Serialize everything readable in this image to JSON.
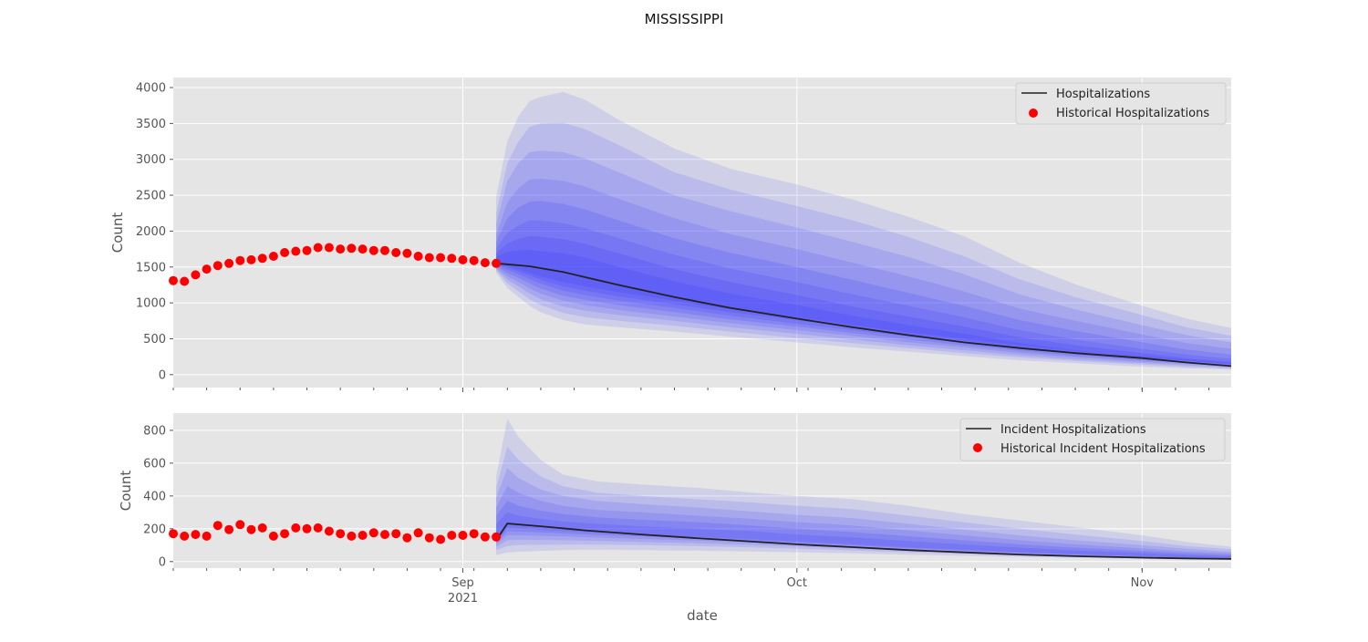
{
  "figure": {
    "title": "MISSISSIPPI"
  },
  "chart_data": [
    {
      "type": "line",
      "ylabel": "Count",
      "xlabel": "",
      "ylim": [
        -180,
        4140
      ],
      "yticks": [
        0,
        500,
        1000,
        1500,
        2000,
        2500,
        3000,
        3500,
        4000
      ],
      "xlim": [
        "2021-08-06",
        "2021-11-09"
      ],
      "xticks": [
        {
          "date": "2021-09-01",
          "label": "Sep",
          "sublabel": "2021"
        },
        {
          "date": "2021-10-01",
          "label": "Oct",
          "sublabel": ""
        },
        {
          "date": "2021-11-01",
          "label": "Nov",
          "sublabel": ""
        }
      ],
      "grid": true,
      "legend_position": "top-right",
      "legend": [
        "Hospitalizations",
        "Historical Hospitalizations"
      ],
      "colors": {
        "historical": "#ff0000",
        "median": "#222222",
        "band": "#3333ff",
        "background": "#e5e5e5"
      },
      "historical": {
        "name": "Historical Hospitalizations",
        "x": [
          "2021-08-06",
          "2021-08-07",
          "2021-08-08",
          "2021-08-09",
          "2021-08-10",
          "2021-08-11",
          "2021-08-12",
          "2021-08-13",
          "2021-08-14",
          "2021-08-15",
          "2021-08-16",
          "2021-08-17",
          "2021-08-18",
          "2021-08-19",
          "2021-08-20",
          "2021-08-21",
          "2021-08-22",
          "2021-08-23",
          "2021-08-24",
          "2021-08-25",
          "2021-08-26",
          "2021-08-27",
          "2021-08-28",
          "2021-08-29",
          "2021-08-30",
          "2021-08-31",
          "2021-09-01",
          "2021-09-02",
          "2021-09-03",
          "2021-09-04"
        ],
        "y": [
          1310,
          1300,
          1390,
          1470,
          1520,
          1550,
          1590,
          1600,
          1620,
          1650,
          1700,
          1720,
          1730,
          1770,
          1770,
          1750,
          1760,
          1750,
          1730,
          1730,
          1700,
          1690,
          1650,
          1630,
          1630,
          1620,
          1600,
          1590,
          1560,
          1550
        ]
      },
      "median": {
        "name": "Hospitalizations",
        "x": [
          "2021-09-04",
          "2021-09-07",
          "2021-09-10",
          "2021-09-15",
          "2021-09-20",
          "2021-09-25",
          "2021-10-01",
          "2021-10-06",
          "2021-10-11",
          "2021-10-16",
          "2021-10-21",
          "2021-10-26",
          "2021-11-01",
          "2021-11-05",
          "2021-11-09"
        ],
        "y": [
          1550,
          1510,
          1430,
          1250,
          1080,
          930,
          780,
          660,
          550,
          450,
          370,
          300,
          230,
          170,
          120
        ]
      },
      "bands": {
        "x": [
          "2021-09-04",
          "2021-09-05",
          "2021-09-06",
          "2021-09-07",
          "2021-09-08",
          "2021-09-10",
          "2021-09-12",
          "2021-09-15",
          "2021-09-20",
          "2021-09-25",
          "2021-10-01",
          "2021-10-06",
          "2021-10-11",
          "2021-10-16",
          "2021-10-21",
          "2021-10-26",
          "2021-11-01",
          "2021-11-05",
          "2021-11-09"
        ],
        "upper": [
          [
            2480,
            3250,
            3600,
            3810,
            3870,
            3940,
            3830,
            3550,
            3150,
            2870,
            2650,
            2440,
            2200,
            1930,
            1560,
            1260,
            960,
            780,
            650
          ],
          [
            2250,
            2950,
            3250,
            3450,
            3500,
            3510,
            3420,
            3200,
            2820,
            2580,
            2350,
            2150,
            1920,
            1650,
            1330,
            1080,
            830,
            660,
            540
          ],
          [
            2100,
            2700,
            2950,
            3100,
            3120,
            3100,
            3010,
            2820,
            2500,
            2280,
            2050,
            1850,
            1640,
            1400,
            1120,
            910,
            690,
            550,
            450
          ],
          [
            1950,
            2400,
            2600,
            2720,
            2730,
            2700,
            2620,
            2450,
            2180,
            1960,
            1750,
            1560,
            1370,
            1160,
            920,
            750,
            560,
            440,
            360
          ],
          [
            1850,
            2180,
            2330,
            2410,
            2420,
            2380,
            2300,
            2150,
            1900,
            1700,
            1500,
            1320,
            1140,
            960,
            760,
            610,
            450,
            350,
            280
          ],
          [
            1760,
            1980,
            2080,
            2150,
            2150,
            2110,
            2040,
            1900,
            1670,
            1480,
            1290,
            1120,
            960,
            800,
            620,
            490,
            360,
            280,
            220
          ],
          [
            1690,
            1830,
            1890,
            1930,
            1920,
            1890,
            1820,
            1690,
            1470,
            1290,
            1110,
            950,
            810,
            670,
            520,
            410,
            300,
            230,
            180
          ],
          [
            1640,
            1710,
            1730,
            1740,
            1720,
            1690,
            1630,
            1500,
            1300,
            1130,
            970,
            820,
            690,
            570,
            440,
            340,
            250,
            190,
            145
          ]
        ],
        "lower": [
          [
            1420,
            1210,
            1080,
            960,
            870,
            760,
            700,
            660,
            600,
            530,
            450,
            380,
            320,
            260,
            200,
            160,
            110,
            90,
            70
          ],
          [
            1450,
            1270,
            1160,
            1050,
            970,
            860,
            800,
            750,
            680,
            600,
            510,
            440,
            370,
            300,
            240,
            190,
            140,
            110,
            85
          ],
          [
            1470,
            1320,
            1230,
            1130,
            1050,
            950,
            890,
            830,
            750,
            660,
            570,
            490,
            410,
            340,
            270,
            210,
            160,
            130,
            100
          ],
          [
            1490,
            1370,
            1290,
            1200,
            1130,
            1030,
            970,
            900,
            810,
            720,
            620,
            540,
            450,
            380,
            300,
            240,
            180,
            150,
            115
          ],
          [
            1510,
            1420,
            1350,
            1270,
            1200,
            1100,
            1040,
            970,
            870,
            770,
            670,
            580,
            490,
            410,
            330,
            260,
            200,
            165,
            130
          ],
          [
            1525,
            1460,
            1400,
            1330,
            1270,
            1170,
            1110,
            1030,
            930,
            820,
            710,
            620,
            530,
            440,
            360,
            290,
            220,
            180,
            140
          ],
          [
            1535,
            1490,
            1440,
            1380,
            1320,
            1230,
            1170,
            1090,
            980,
            870,
            760,
            660,
            560,
            470,
            380,
            310,
            240,
            195,
            150
          ],
          [
            1545,
            1510,
            1470,
            1420,
            1370,
            1290,
            1230,
            1150,
            1030,
            910,
            800,
            690,
            590,
            500,
            410,
            330,
            260,
            210,
            160
          ]
        ]
      }
    },
    {
      "type": "line",
      "ylabel": "Count",
      "xlabel": "date",
      "ylim": [
        -40,
        905
      ],
      "yticks": [
        0,
        200,
        400,
        600,
        800
      ],
      "xlim": [
        "2021-08-06",
        "2021-11-09"
      ],
      "xticks": [
        {
          "date": "2021-09-01",
          "label": "Sep",
          "sublabel": "2021"
        },
        {
          "date": "2021-10-01",
          "label": "Oct",
          "sublabel": ""
        },
        {
          "date": "2021-11-01",
          "label": "Nov",
          "sublabel": ""
        }
      ],
      "grid": true,
      "legend_position": "top-right",
      "legend": [
        "Incident Hospitalizations",
        "Historical Incident Hospitalizations"
      ],
      "colors": {
        "historical": "#ff0000",
        "median": "#222222",
        "band": "#3333ff",
        "background": "#e5e5e5"
      },
      "historical": {
        "name": "Historical Incident Hospitalizations",
        "x": [
          "2021-08-06",
          "2021-08-07",
          "2021-08-08",
          "2021-08-09",
          "2021-08-10",
          "2021-08-11",
          "2021-08-12",
          "2021-08-13",
          "2021-08-14",
          "2021-08-15",
          "2021-08-16",
          "2021-08-17",
          "2021-08-18",
          "2021-08-19",
          "2021-08-20",
          "2021-08-21",
          "2021-08-22",
          "2021-08-23",
          "2021-08-24",
          "2021-08-25",
          "2021-08-26",
          "2021-08-27",
          "2021-08-28",
          "2021-08-29",
          "2021-08-30",
          "2021-08-31",
          "2021-09-01",
          "2021-09-02",
          "2021-09-03",
          "2021-09-04"
        ],
        "y": [
          170,
          155,
          165,
          155,
          220,
          195,
          225,
          195,
          205,
          155,
          170,
          205,
          200,
          205,
          185,
          170,
          155,
          160,
          175,
          165,
          170,
          145,
          175,
          145,
          135,
          160,
          160,
          170,
          150,
          150
        ]
      },
      "median": {
        "name": "Incident Hospitalizations",
        "x": [
          "2021-09-04",
          "2021-09-05",
          "2021-09-08",
          "2021-09-12",
          "2021-09-17",
          "2021-09-22",
          "2021-09-27",
          "2021-10-01",
          "2021-10-06",
          "2021-10-11",
          "2021-10-16",
          "2021-10-21",
          "2021-10-26",
          "2021-11-01",
          "2021-11-05",
          "2021-11-09"
        ],
        "y": [
          130,
          232,
          215,
          190,
          165,
          143,
          122,
          105,
          88,
          70,
          56,
          43,
          33,
          24,
          19,
          16
        ]
      },
      "bands": {
        "x": [
          "2021-09-04",
          "2021-09-05",
          "2021-09-06",
          "2021-09-08",
          "2021-09-10",
          "2021-09-13",
          "2021-09-17",
          "2021-09-22",
          "2021-09-27",
          "2021-10-01",
          "2021-10-06",
          "2021-10-11",
          "2021-10-16",
          "2021-10-21",
          "2021-10-26",
          "2021-11-01",
          "2021-11-05",
          "2021-11-09"
        ],
        "upper": [
          [
            520,
            870,
            760,
            620,
            530,
            490,
            470,
            450,
            420,
            400,
            380,
            340,
            290,
            250,
            210,
            160,
            120,
            90
          ],
          [
            450,
            700,
            620,
            520,
            460,
            420,
            400,
            380,
            360,
            340,
            320,
            280,
            240,
            200,
            165,
            125,
            95,
            75
          ],
          [
            390,
            570,
            510,
            440,
            400,
            370,
            350,
            330,
            305,
            285,
            265,
            230,
            195,
            160,
            130,
            100,
            78,
            60
          ],
          [
            330,
            460,
            420,
            370,
            340,
            315,
            300,
            280,
            260,
            240,
            220,
            190,
            160,
            130,
            105,
            80,
            62,
            50
          ],
          [
            280,
            370,
            340,
            310,
            290,
            270,
            255,
            240,
            220,
            200,
            180,
            155,
            130,
            105,
            85,
            65,
            50,
            40
          ],
          [
            230,
            300,
            280,
            260,
            245,
            230,
            215,
            200,
            185,
            165,
            148,
            125,
            105,
            85,
            68,
            52,
            40,
            32
          ]
        ],
        "lower": [
          [
            40,
            55,
            60,
            65,
            70,
            72,
            70,
            66,
            62,
            57,
            50,
            42,
            35,
            28,
            22,
            16,
            12,
            10
          ],
          [
            70,
            95,
            100,
            102,
            104,
            104,
            100,
            94,
            86,
            78,
            68,
            57,
            47,
            37,
            29,
            21,
            16,
            13
          ],
          [
            90,
            130,
            132,
            132,
            130,
            126,
            120,
            112,
            102,
            92,
            80,
            66,
            54,
            43,
            34,
            25,
            19,
            15
          ],
          [
            105,
            160,
            160,
            157,
            153,
            146,
            138,
            128,
            116,
            104,
            90,
            75,
            61,
            48,
            38,
            28,
            21,
            17
          ],
          [
            115,
            185,
            183,
            178,
            172,
            163,
            153,
            141,
            127,
            114,
            98,
            82,
            67,
            53,
            41,
            30,
            23,
            18
          ],
          [
            122,
            205,
            200,
            194,
            186,
            176,
            164,
            151,
            136,
            122,
            105,
            87,
            71,
            56,
            44,
            32,
            24,
            19
          ]
        ]
      }
    }
  ]
}
